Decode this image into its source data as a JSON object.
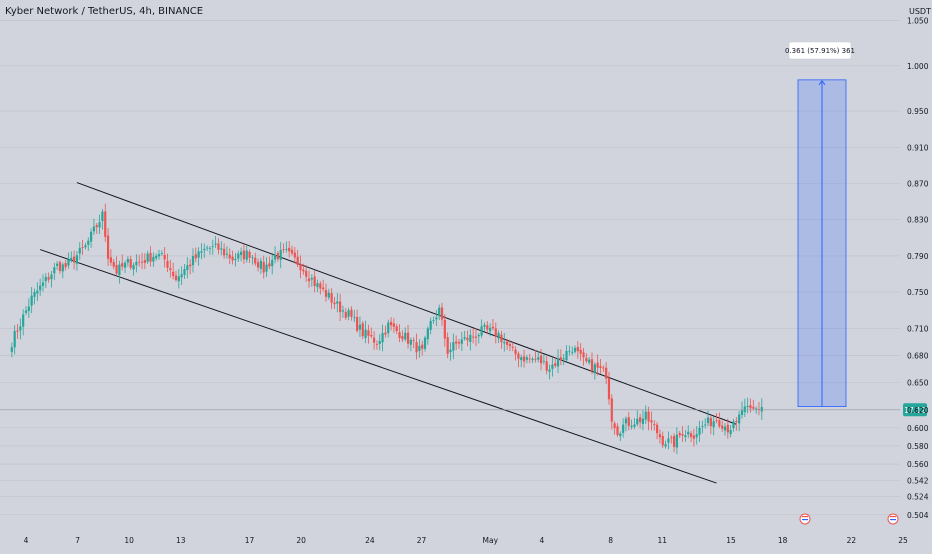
{
  "chart_data": {
    "type": "candlestick",
    "title": "Kyber Network / TetherUS, 4h, BINANCE",
    "currency": "USDT",
    "ylim": [
      0.496,
      1.065
    ],
    "y_tick_labels": [
      "1.050",
      "1.000",
      "0.950",
      "0.910",
      "0.870",
      "0.830",
      "0.790",
      "0.750",
      "0.710",
      "0.680",
      "0.650",
      "0.620",
      "0.600",
      "0.580",
      "0.560",
      "0.542",
      "0.524",
      "0.504"
    ],
    "x_tick_labels": [
      "4",
      "7",
      "10",
      "13",
      "17",
      "20",
      "24",
      "27",
      "May",
      "4",
      "8",
      "11",
      "15",
      "18",
      "22",
      "25"
    ],
    "price_label": "17:12",
    "current_price": 0.62,
    "measure_label": "0.361 (57.91%) 361",
    "measure_from": 0.6235,
    "measure_to": 0.9845,
    "colors": {
      "up": "#26a69a",
      "down": "#ef5350",
      "measure": "#2962ff",
      "channel": "#131722",
      "price_tag": "#26a69a"
    },
    "channel": {
      "upper": [
        [
          0,
          0.871
        ],
        [
          233,
          0.604
        ]
      ],
      "lower": [
        [
          -13,
          0.797
        ],
        [
          226,
          0.539
        ]
      ]
    },
    "anchors": [
      [
        -23,
        0.695
      ],
      [
        -16,
        0.743
      ],
      [
        -11,
        0.763
      ],
      [
        -7,
        0.779
      ],
      [
        -4,
        0.778
      ],
      [
        3,
        0.8
      ],
      [
        9,
        0.835
      ],
      [
        11,
        0.791
      ],
      [
        14,
        0.773
      ],
      [
        18,
        0.782
      ],
      [
        22,
        0.783
      ],
      [
        28,
        0.792
      ],
      [
        31,
        0.786
      ],
      [
        35,
        0.765
      ],
      [
        41,
        0.785
      ],
      [
        46,
        0.799
      ],
      [
        50,
        0.798
      ],
      [
        55,
        0.787
      ],
      [
        61,
        0.793
      ],
      [
        66,
        0.775
      ],
      [
        70,
        0.79
      ],
      [
        74,
        0.793
      ],
      [
        79,
        0.78
      ],
      [
        84,
        0.76
      ],
      [
        88,
        0.748
      ],
      [
        92,
        0.735
      ],
      [
        96,
        0.725
      ],
      [
        101,
        0.705
      ],
      [
        106,
        0.695
      ],
      [
        110,
        0.713
      ],
      [
        114,
        0.705
      ],
      [
        118,
        0.695
      ],
      [
        122,
        0.683
      ],
      [
        125,
        0.715
      ],
      [
        128,
        0.73
      ],
      [
        131,
        0.685
      ],
      [
        135,
        0.695
      ],
      [
        139,
        0.7
      ],
      [
        144,
        0.708
      ],
      [
        149,
        0.703
      ],
      [
        154,
        0.683
      ],
      [
        159,
        0.676
      ],
      [
        163,
        0.675
      ],
      [
        167,
        0.667
      ],
      [
        171,
        0.677
      ],
      [
        175,
        0.689
      ],
      [
        179,
        0.673
      ],
      [
        183,
        0.667
      ],
      [
        187,
        0.66
      ],
      [
        189,
        0.612
      ],
      [
        191,
        0.597
      ],
      [
        194,
        0.605
      ],
      [
        198,
        0.608
      ],
      [
        201,
        0.612
      ],
      [
        204,
        0.6
      ],
      [
        207,
        0.586
      ],
      [
        211,
        0.583
      ],
      [
        214,
        0.596
      ],
      [
        218,
        0.593
      ],
      [
        222,
        0.604
      ],
      [
        226,
        0.61
      ],
      [
        230,
        0.6
      ],
      [
        233,
        0.603
      ],
      [
        235,
        0.62
      ],
      [
        238,
        0.618
      ],
      [
        242,
        0.623
      ]
    ]
  }
}
